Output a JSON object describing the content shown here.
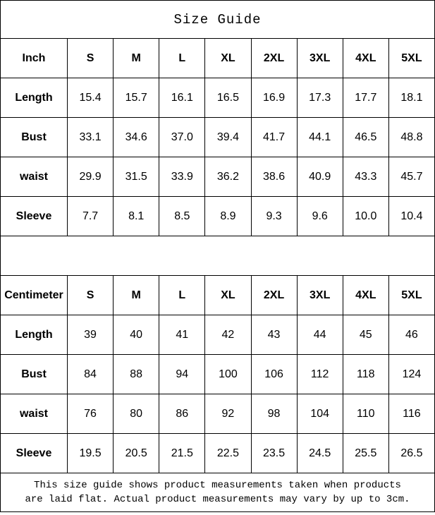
{
  "page": {
    "title": "Size Guide"
  },
  "tables": [
    {
      "unit_label": "Inch",
      "columns": [
        "S",
        "M",
        "L",
        "XL",
        "2XL",
        "3XL",
        "4XL",
        "5XL"
      ],
      "rows": [
        {
          "label": "Length",
          "values": [
            "15.4",
            "15.7",
            "16.1",
            "16.5",
            "16.9",
            "17.3",
            "17.7",
            "18.1"
          ]
        },
        {
          "label": "Bust",
          "values": [
            "33.1",
            "34.6",
            "37.0",
            "39.4",
            "41.7",
            "44.1",
            "46.5",
            "48.8"
          ]
        },
        {
          "label": "waist",
          "values": [
            "29.9",
            "31.5",
            "33.9",
            "36.2",
            "38.6",
            "40.9",
            "43.3",
            "45.7"
          ]
        },
        {
          "label": "Sleeve",
          "values": [
            "7.7",
            "8.1",
            "8.5",
            "8.9",
            "9.3",
            "9.6",
            "10.0",
            "10.4"
          ]
        }
      ]
    },
    {
      "unit_label": "Centimeter",
      "columns": [
        "S",
        "M",
        "L",
        "XL",
        "2XL",
        "3XL",
        "4XL",
        "5XL"
      ],
      "rows": [
        {
          "label": "Length",
          "values": [
            "39",
            "40",
            "41",
            "42",
            "43",
            "44",
            "45",
            "46"
          ]
        },
        {
          "label": "Bust",
          "values": [
            "84",
            "88",
            "94",
            "100",
            "106",
            "112",
            "118",
            "124"
          ]
        },
        {
          "label": "waist",
          "values": [
            "76",
            "80",
            "86",
            "92",
            "98",
            "104",
            "110",
            "116"
          ]
        },
        {
          "label": "Sleeve",
          "values": [
            "19.5",
            "20.5",
            "21.5",
            "22.5",
            "23.5",
            "24.5",
            "25.5",
            "26.5"
          ]
        }
      ]
    }
  ],
  "footer": {
    "note_lines": [
      "This size guide shows product measurements taken when products",
      "are laid flat. Actual product measurements may vary by up to 3cm."
    ]
  },
  "colors": {
    "border": "#000000",
    "background": "#ffffff",
    "text": "#000000"
  }
}
